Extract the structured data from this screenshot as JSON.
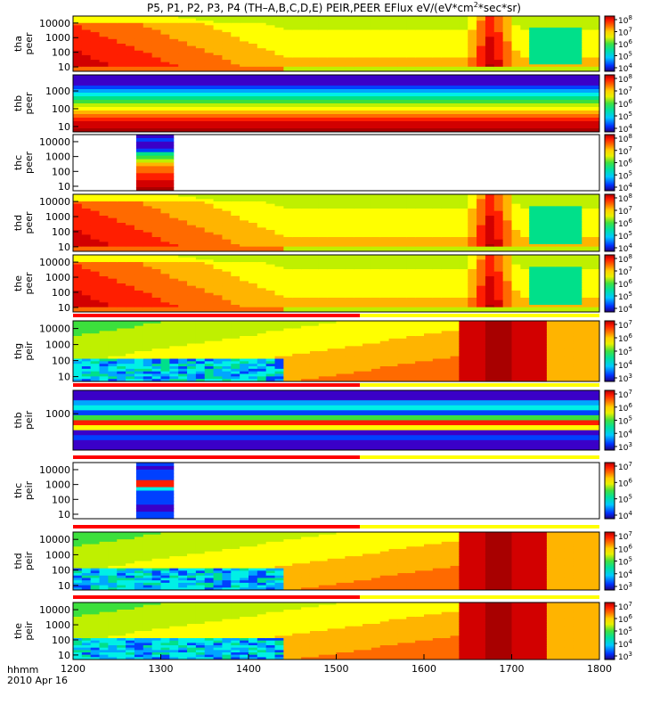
{
  "title": {
    "prefix": "P5, P1, P2, P3, P4 (TH–A,B,C,D,E) PEIR,PEER EFlux eV/(eV*cm",
    "sup": "2",
    "suffix": "*sec*sr)"
  },
  "chart_data": [
    {
      "type": "heatmap",
      "ylabel": [
        "tha",
        "peer"
      ],
      "yticks": [
        "10000",
        "1000",
        "100",
        "10"
      ],
      "yscale": "log",
      "ylim": [
        5,
        30000
      ],
      "cbar_exponents": [
        "8",
        "7",
        "6",
        "5",
        "4"
      ],
      "pattern": "peer-full",
      "quality_bar": false
    },
    {
      "type": "heatmap",
      "ylabel": [
        "thb",
        "peer"
      ],
      "yticks": [
        "1000",
        "100",
        "10"
      ],
      "yscale": "log",
      "ylim": [
        5,
        8000
      ],
      "cbar_exponents": [
        "8",
        "7",
        "6",
        "5",
        "4"
      ],
      "pattern": "peer-b",
      "quality_bar": false
    },
    {
      "type": "heatmap",
      "ylabel": [
        "thc",
        "peer"
      ],
      "yticks": [
        "10000",
        "1000",
        "100",
        "10"
      ],
      "yscale": "log",
      "ylim": [
        5,
        30000
      ],
      "cbar_exponents": [
        "8",
        "7",
        "6",
        "5",
        "4"
      ],
      "pattern": "peer-c",
      "quality_bar": false
    },
    {
      "type": "heatmap",
      "ylabel": [
        "thd",
        "peer"
      ],
      "yticks": [
        "10000",
        "1000",
        "100",
        "10"
      ],
      "yscale": "log",
      "ylim": [
        5,
        30000
      ],
      "cbar_exponents": [
        "8",
        "7",
        "6",
        "5",
        "4"
      ],
      "pattern": "peer-full",
      "quality_bar": false
    },
    {
      "type": "heatmap",
      "ylabel": [
        "the",
        "peer"
      ],
      "yticks": [
        "10000",
        "1000",
        "100",
        "10"
      ],
      "yscale": "log",
      "ylim": [
        5,
        30000
      ],
      "cbar_exponents": [
        "8",
        "7",
        "6",
        "5",
        "4"
      ],
      "pattern": "peer-full",
      "quality_bar": false
    },
    {
      "type": "heatmap",
      "ylabel": [
        "thg",
        "peir"
      ],
      "yticks": [
        "10000",
        "1000",
        "100",
        "10"
      ],
      "yscale": "log",
      "ylim": [
        5,
        30000
      ],
      "cbar_exponents": [
        "7",
        "6",
        "5",
        "4",
        "3"
      ],
      "pattern": "peir-full",
      "quality_bar": true
    },
    {
      "type": "heatmap",
      "ylabel": [
        "thb",
        "peir"
      ],
      "yticks": [
        "1000"
      ],
      "yscale": "log",
      "ylim": [
        5,
        30000
      ],
      "cbar_exponents": [
        "7",
        "6",
        "5",
        "4",
        "3"
      ],
      "pattern": "peir-b",
      "quality_bar": true
    },
    {
      "type": "heatmap",
      "ylabel": [
        "thc",
        "peir"
      ],
      "yticks": [
        "10000",
        "1000",
        "100",
        "10"
      ],
      "yscale": "log",
      "ylim": [
        5,
        30000
      ],
      "cbar_exponents": [
        "7",
        "6",
        "5",
        "4"
      ],
      "pattern": "peir-c",
      "quality_bar": true
    },
    {
      "type": "heatmap",
      "ylabel": [
        "thd",
        "peir"
      ],
      "yticks": [
        "10000",
        "1000",
        "100",
        "10"
      ],
      "yscale": "log",
      "ylim": [
        5,
        30000
      ],
      "cbar_exponents": [
        "7",
        "6",
        "5",
        "4",
        "3"
      ],
      "pattern": "peir-full",
      "quality_bar": true
    },
    {
      "type": "heatmap",
      "ylabel": [
        "the",
        "peir"
      ],
      "yticks": [
        "10000",
        "1000",
        "100",
        "10"
      ],
      "yscale": "log",
      "ylim": [
        5,
        30000
      ],
      "cbar_exponents": [
        "7",
        "6",
        "5",
        "4",
        "3"
      ],
      "pattern": "peir-full",
      "quality_bar": true
    }
  ],
  "xaxis": {
    "ticks": [
      "1200",
      "1300",
      "1400",
      "1500",
      "1600",
      "1700",
      "1800"
    ],
    "label_line1": "hhmm",
    "label_line2": "2010 Apr 16",
    "range": [
      1200,
      1800
    ]
  },
  "colors": {
    "colormap": [
      "#20007a",
      "#3a00c8",
      "#0040ff",
      "#00a6ff",
      "#00f0e6",
      "#00e08a",
      "#3ce03c",
      "#bff000",
      "#ffff00",
      "#ffb400",
      "#ff6a00",
      "#ff1e00",
      "#d20000",
      "#a80000"
    ],
    "quality_red": "#ff0000",
    "quality_yellow": "#ffff00"
  }
}
